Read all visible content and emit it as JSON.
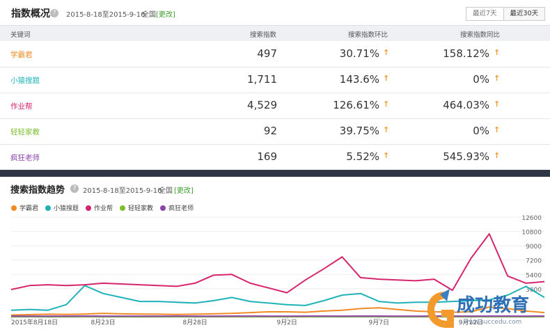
{
  "overview": {
    "title": "指数概况",
    "date_range": "2015-8-18至2015-9-16",
    "region": "全国",
    "change_link": "[更改]",
    "buttons": [
      "最近7天",
      "最近30天"
    ],
    "columns": [
      "关键词",
      "搜索指数",
      "搜索指数环比",
      "搜索指数同比"
    ],
    "rows": [
      {
        "keyword": "学霸君",
        "index": "497",
        "mom": "30.71%",
        "yoy": "158.12%",
        "color": "#f08a24"
      },
      {
        "keyword": "小猿搜题",
        "index": "1,711",
        "mom": "143.6%",
        "yoy": "0%",
        "color": "#1fb2b9"
      },
      {
        "keyword": "作业帮",
        "index": "4,529",
        "mom": "126.61%",
        "yoy": "464.03%",
        "color": "#d6246d"
      },
      {
        "keyword": "轻轻家教",
        "index": "92",
        "mom": "39.75%",
        "yoy": "0%",
        "color": "#7cbe2e"
      },
      {
        "keyword": "疯狂老师",
        "index": "169",
        "mom": "5.52%",
        "yoy": "545.93%",
        "color": "#8e44ad"
      }
    ]
  },
  "trend": {
    "title": "搜索指数趋势",
    "date_range": "2015-8-18至2015-9-16",
    "region": "全国",
    "change_link": "[更改]"
  },
  "chart_data": {
    "type": "line",
    "x": [
      "2015年8月18日",
      "8月19日",
      "8月20日",
      "8月21日",
      "8月22日",
      "8月23日",
      "8月24日",
      "8月25日",
      "8月26日",
      "8月27日",
      "8月28日",
      "8月29日",
      "8月30日",
      "8月31日",
      "9月1日",
      "9月2日",
      "9月3日",
      "9月4日",
      "9月5日",
      "9月6日",
      "9月7日",
      "9月8日",
      "9月9日",
      "9月10日",
      "9月11日",
      "9月12日",
      "9月13日",
      "9月14日",
      "9月15日",
      "9月16日"
    ],
    "xtick_labels": [
      "2015年8月18日",
      "8月23日",
      "8月28日",
      "9月2日",
      "9月7日",
      "9月12日"
    ],
    "yticks": [
      "12600",
      "10800",
      "9000",
      "7200",
      "5400",
      "3600"
    ],
    "ylim": [
      0,
      12600
    ],
    "series": [
      {
        "name": "学霸君",
        "color": "#f08a24",
        "values": [
          300,
          350,
          400,
          380,
          420,
          500,
          450,
          420,
          400,
          380,
          400,
          450,
          500,
          600,
          700,
          700,
          650,
          800,
          900,
          1100,
          1200,
          1000,
          800,
          700,
          650,
          700,
          1300,
          1100,
          800,
          600
        ]
      },
      {
        "name": "小猿搜题",
        "color": "#1fb2b9",
        "values": [
          900,
          1000,
          900,
          1600,
          4000,
          3000,
          2500,
          2000,
          2000,
          1900,
          1800,
          2100,
          2500,
          2000,
          1800,
          1600,
          1500,
          2100,
          2800,
          3000,
          2000,
          1800,
          1900,
          1900,
          2000,
          2100,
          2200,
          2800,
          3900,
          2500
        ]
      },
      {
        "name": "作业帮",
        "color": "#d6246d",
        "values": [
          3500,
          4000,
          4100,
          4000,
          4100,
          4300,
          4200,
          4100,
          4000,
          3900,
          4300,
          5300,
          5400,
          4300,
          3700,
          3100,
          4700,
          6100,
          7600,
          5000,
          4800,
          4700,
          4600,
          4800,
          3400,
          7400,
          10500,
          5200,
          4300,
          4500
        ]
      },
      {
        "name": "轻轻家教",
        "color": "#7cbe2e",
        "values": [
          80,
          90,
          80,
          90,
          100,
          90,
          90,
          80,
          90,
          100,
          90,
          90,
          100,
          100,
          90,
          90,
          100,
          100,
          90,
          100,
          100,
          90,
          90,
          100,
          100,
          90,
          100,
          100,
          90,
          92
        ]
      },
      {
        "name": "疯狂老师",
        "color": "#8e44ad",
        "values": [
          150,
          160,
          150,
          160,
          170,
          160,
          160,
          150,
          160,
          170,
          160,
          160,
          170,
          170,
          160,
          160,
          170,
          170,
          160,
          170,
          170,
          160,
          160,
          170,
          170,
          160,
          170,
          170,
          160,
          169
        ]
      }
    ]
  },
  "watermark": {
    "brand": "成功教育",
    "url": "www.succedu.com"
  }
}
